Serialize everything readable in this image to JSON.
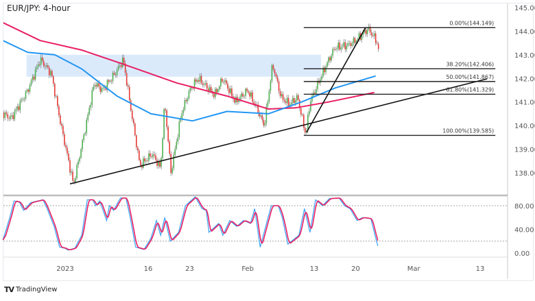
{
  "title": "EUR/JPY: 4-hour",
  "logo": {
    "mark": "TV",
    "text": "TradingView"
  },
  "colors": {
    "up": "#4caf50",
    "down": "#e53935",
    "ma_slow": "#e91e63",
    "ma_fast": "#2196f3",
    "zone": "#dbeafb",
    "stoch_k": "#42a5f5",
    "stoch_d": "#e91e63"
  },
  "chart_data": [
    {
      "type": "candlestick",
      "title": "EUR/JPY: 4-hour",
      "ylim": [
        137.2,
        145.2
      ],
      "price_ticks": [
        "145.000",
        "144.000",
        "143.000",
        "142.000",
        "141.000",
        "140.000",
        "139.000",
        "138.000"
      ],
      "date_ticks": [
        {
          "label": "2023",
          "date": "2023-01-02 00:00"
        },
        {
          "label": "16",
          "date": "2023-01-16 00:00"
        },
        {
          "label": "23",
          "date": "2023-01-23 00:00"
        },
        {
          "label": "Feb",
          "date": "2023-02-01 00:00"
        },
        {
          "label": "13",
          "date": "2023-02-13 00:00"
        },
        {
          "label": "20",
          "date": "2023-02-20 00:00"
        },
        {
          "label": "Mar",
          "date": "2023-03-01 00:00"
        },
        {
          "label": "13",
          "date": "2023-03-13 00:00"
        }
      ],
      "price_path": [
        [
          "2022-12-21 00:00",
          140.6
        ],
        [
          "2022-12-22 12:00",
          140.3
        ],
        [
          "2022-12-26 12:00",
          141.5
        ],
        [
          "2022-12-28 00:00",
          142.8
        ],
        [
          "2022-12-29 08:00",
          142.2
        ],
        [
          "2022-12-30 12:00",
          140.0
        ],
        [
          "2023-01-03 00:00",
          137.5
        ],
        [
          "2023-01-04 12:00",
          140.0
        ],
        [
          "2023-01-05 12:00",
          141.8
        ],
        [
          "2023-01-06 12:00",
          141.5
        ],
        [
          "2023-01-10 00:00",
          142.2
        ],
        [
          "2023-01-11 00:00",
          142.8
        ],
        [
          "2023-01-12 00:00",
          140.5
        ],
        [
          "2023-01-13 00:00",
          138.3
        ],
        [
          "2023-01-16 12:00",
          138.8
        ],
        [
          "2023-01-17 12:00",
          138.2
        ],
        [
          "2023-01-18 00:00",
          141.0
        ],
        [
          "2023-01-18 18:00",
          138.0
        ],
        [
          "2023-01-20 00:00",
          140.5
        ],
        [
          "2023-01-23 00:00",
          141.5
        ],
        [
          "2023-01-24 00:00",
          142.0
        ],
        [
          "2023-01-26 00:00",
          141.3
        ],
        [
          "2023-01-27 00:00",
          142.0
        ],
        [
          "2023-01-30 12:00",
          141.0
        ],
        [
          "2023-02-01 00:00",
          141.5
        ],
        [
          "2023-02-02 00:00",
          140.8
        ],
        [
          "2023-02-03 00:00",
          140.0
        ],
        [
          "2023-02-06 00:00",
          142.6
        ],
        [
          "2023-02-07 00:00",
          141.2
        ],
        [
          "2023-02-08 00:00",
          140.9
        ],
        [
          "2023-02-09 00:00",
          141.2
        ],
        [
          "2023-02-10 00:00",
          139.6
        ],
        [
          "2023-02-10 12:00",
          141.0
        ],
        [
          "2023-02-13 12:00",
          141.8
        ],
        [
          "2023-02-14 12:00",
          142.6
        ],
        [
          "2023-02-15 12:00",
          143.3
        ],
        [
          "2023-02-17 00:00",
          143.4
        ],
        [
          "2023-02-20 00:00",
          143.6
        ],
        [
          "2023-02-21 12:00",
          144.1
        ],
        [
          "2023-02-22 12:00",
          143.6
        ],
        [
          "2023-02-22 20:00",
          143.1
        ]
      ],
      "ma_slow": [
        [
          "2022-12-21 12:00",
          144.36
        ],
        [
          "2022-12-28 00:00",
          143.6
        ],
        [
          "2023-01-04 00:00",
          143.2
        ],
        [
          "2023-01-11 00:00",
          142.6
        ],
        [
          "2023-01-19 12:00",
          141.8
        ],
        [
          "2023-01-27 12:00",
          141.25
        ],
        [
          "2023-02-03 12:00",
          140.7
        ],
        [
          "2023-02-08 18:00",
          140.75
        ],
        [
          "2023-02-14 18:00",
          141.0
        ],
        [
          "2023-02-22 06:00",
          141.4
        ]
      ],
      "ma_fast": [
        [
          "2022-12-21 12:00",
          143.6
        ],
        [
          "2022-12-26 12:00",
          143.1
        ],
        [
          "2022-12-29 18:00",
          143.0
        ],
        [
          "2023-01-04 00:00",
          142.4
        ],
        [
          "2023-01-10 06:00",
          141.25
        ],
        [
          "2023-01-16 08:00",
          140.5
        ],
        [
          "2023-01-23 08:00",
          140.2
        ],
        [
          "2023-01-27 12:00",
          140.6
        ],
        [
          "2023-02-03 12:00",
          140.5
        ],
        [
          "2023-02-09 12:00",
          141.0
        ],
        [
          "2023-02-15 14:00",
          141.6
        ],
        [
          "2023-02-22 10:00",
          142.1
        ]
      ],
      "resistance_zone": {
        "from": "2022-12-26 08:00",
        "to": "2023-02-13 20:00",
        "top": 143.0,
        "bottom": 142.07
      },
      "trendlines": [
        {
          "from": [
            "2023-01-02 14:00",
            137.53
          ],
          "to": [
            "2023-03-13 20:00",
            141.98
          ]
        },
        {
          "from": [
            "2023-02-10 02:00",
            139.71
          ],
          "to": [
            "2023-02-21 05:00",
            144.16
          ]
        }
      ],
      "fibonacci": {
        "from": "2023-02-09 18:00",
        "to": "2023-03-14 20:00",
        "levels": [
          {
            "label": "0.00%(144.149)",
            "price": 144.149
          },
          {
            "label": "38.20%(142.406)",
            "price": 142.406
          },
          {
            "label": "50.00%(141.867)",
            "price": 141.867
          },
          {
            "label": "61.80%(141.329)",
            "price": 141.329
          },
          {
            "label": "100.00%(139.585)",
            "price": 139.585
          }
        ]
      }
    },
    {
      "type": "line",
      "indicator": "stochastic",
      "ylim": [
        0,
        100
      ],
      "ticks": [
        "80.00",
        "40.00",
        "0.00"
      ],
      "tick_values": [
        80,
        40,
        0
      ],
      "bands": [
        80,
        20
      ],
      "k_line": [
        [
          "2022-12-21 12:00",
          22
        ],
        [
          "2022-12-22 08:00",
          60
        ],
        [
          "2022-12-22 20:00",
          88
        ],
        [
          "2022-12-23 12:00",
          86
        ],
        [
          "2022-12-26 00:00",
          72
        ],
        [
          "2022-12-26 20:00",
          85
        ],
        [
          "2022-12-27 16:00",
          88
        ],
        [
          "2022-12-28 08:00",
          90
        ],
        [
          "2022-12-28 20:00",
          75
        ],
        [
          "2022-12-29 16:00",
          45
        ],
        [
          "2022-12-30 08:00",
          10
        ],
        [
          "2023-01-02 00:00",
          8
        ],
        [
          "2023-01-02 08:00",
          5
        ],
        [
          "2023-01-03 04:00",
          8
        ],
        [
          "2023-01-04 00:00",
          30
        ],
        [
          "2023-01-04 16:00",
          90
        ],
        [
          "2023-01-05 08:00",
          90
        ],
        [
          "2023-01-05 16:00",
          80
        ],
        [
          "2023-01-06 04:00",
          88
        ],
        [
          "2023-01-09 00:00",
          55
        ],
        [
          "2023-01-09 08:00",
          80
        ],
        [
          "2023-01-09 20:00",
          72
        ],
        [
          "2023-01-10 16:00",
          93
        ],
        [
          "2023-01-11 08:00",
          93
        ],
        [
          "2023-01-11 20:00",
          60
        ],
        [
          "2023-01-12 12:00",
          10
        ],
        [
          "2023-01-13 12:00",
          6
        ],
        [
          "2023-01-16 08:00",
          25
        ],
        [
          "2023-01-17 00:00",
          55
        ],
        [
          "2023-01-17 12:00",
          30
        ],
        [
          "2023-01-18 00:00",
          60
        ],
        [
          "2023-01-18 16:00",
          20
        ],
        [
          "2023-01-19 16:00",
          35
        ],
        [
          "2023-01-20 12:00",
          80
        ],
        [
          "2023-01-23 16:00",
          95
        ],
        [
          "2023-01-24 12:00",
          75
        ],
        [
          "2023-01-25 00:00",
          72
        ],
        [
          "2023-01-25 08:00",
          35
        ],
        [
          "2023-01-26 12:00",
          50
        ],
        [
          "2023-01-27 00:00",
          30
        ],
        [
          "2023-01-27 20:00",
          55
        ],
        [
          "2023-01-30 16:00",
          45
        ],
        [
          "2023-01-31 12:00",
          55
        ],
        [
          "2023-02-01 08:00",
          50
        ],
        [
          "2023-02-01 20:00",
          75
        ],
        [
          "2023-02-02 12:00",
          10
        ],
        [
          "2023-02-03 20:00",
          80
        ],
        [
          "2023-02-06 16:00",
          80
        ],
        [
          "2023-02-07 04:00",
          60
        ],
        [
          "2023-02-07 20:00",
          15
        ],
        [
          "2023-02-09 04:00",
          30
        ],
        [
          "2023-02-09 20:00",
          75
        ],
        [
          "2023-02-10 12:00",
          35
        ],
        [
          "2023-02-13 04:00",
          90
        ],
        [
          "2023-02-14 00:00",
          80
        ],
        [
          "2023-02-14 20:00",
          92
        ],
        [
          "2023-02-16 00:00",
          93
        ],
        [
          "2023-02-16 16:00",
          80
        ],
        [
          "2023-02-17 08:00",
          75
        ],
        [
          "2023-02-20 04:00",
          55
        ],
        [
          "2023-02-20 20:00",
          60
        ],
        [
          "2023-02-21 20:00",
          58
        ],
        [
          "2023-02-22 16:00",
          12
        ]
      ]
    }
  ]
}
